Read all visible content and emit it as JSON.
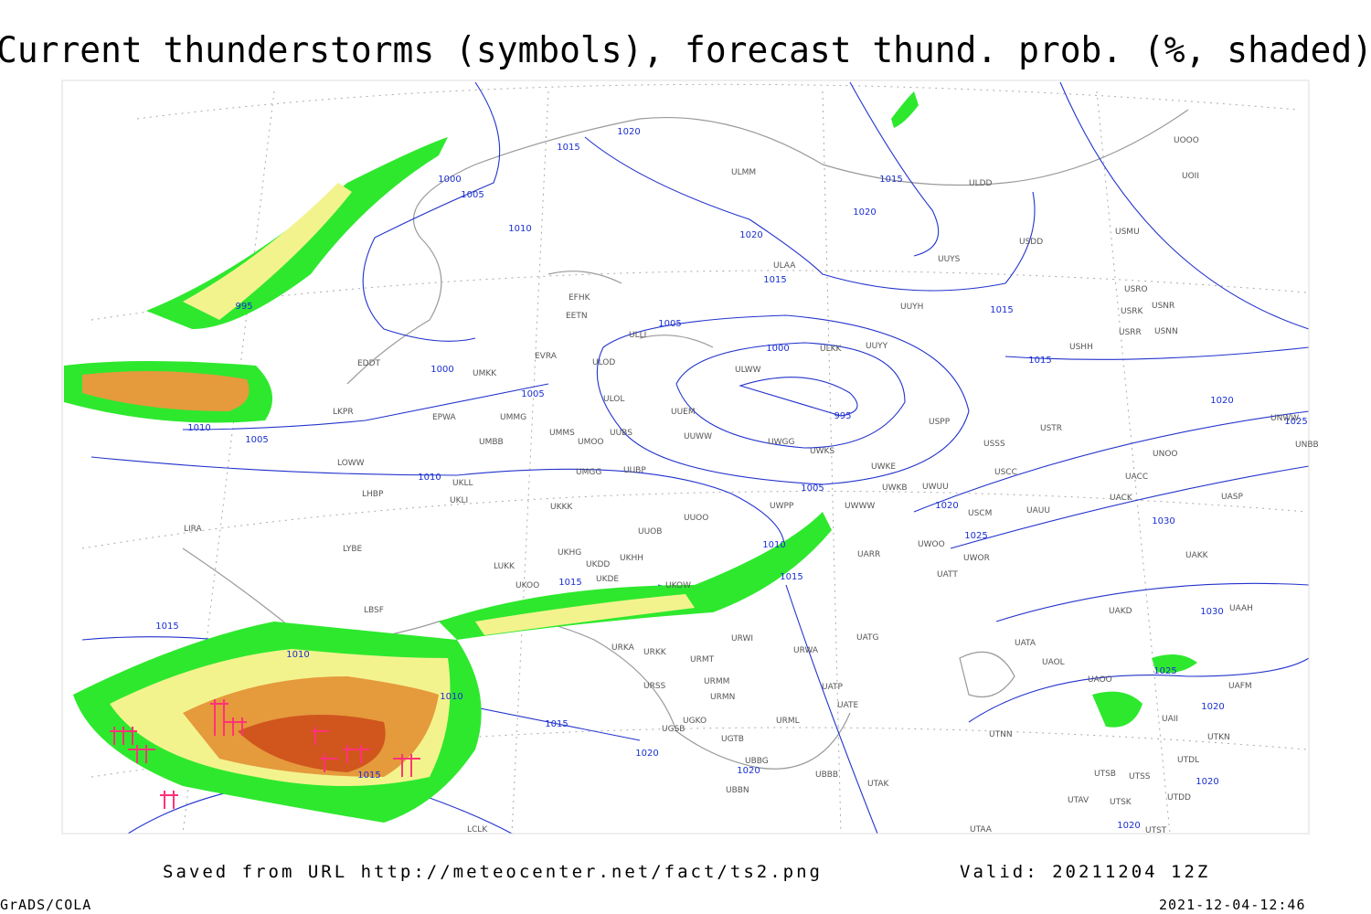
{
  "title": "Current thunderstorms (symbols), forecast thund. prob. (%, shaded)",
  "isobar_labels": [
    "1015",
    "1020",
    "1000",
    "1005",
    "1010",
    "1020",
    "1015",
    "1015",
    "1020",
    "995",
    "1000",
    "1005",
    "1010",
    "1005",
    "1010",
    "1005",
    "1000",
    "995",
    "1005",
    "1015",
    "1015",
    "1020",
    "1025",
    "1020",
    "1025",
    "1030",
    "1030",
    "1025",
    "1020",
    "1020",
    "1020",
    "1010",
    "1015",
    "1015",
    "1015",
    "1010",
    "1010",
    "1015",
    "1015",
    "1020",
    "1020"
  ],
  "station_labels": [
    "EDDT",
    "EFHK",
    "EETN",
    "EVRA",
    "ULLI",
    "ULOD",
    "UMKK",
    "ULOL",
    "UMMG",
    "EPWA",
    "LKPR",
    "UMMS",
    "UMOO",
    "UUBS",
    "UMBB",
    "UUEM",
    "UUWW",
    "UWGG",
    "UWKS",
    "ULWW",
    "ULKK",
    "UUYY",
    "USPP",
    "UWKE",
    "UWKB",
    "UWUU",
    "UWWW",
    "UWPP",
    "LOWW",
    "LHBP",
    "UKLL",
    "UKLI",
    "UMGG",
    "UUBP",
    "UKKK",
    "UUOO",
    "UUOB",
    "LIRA",
    "LYBE",
    "LUKK",
    "UKHH",
    "UKDD",
    "UKHG",
    "UKOO",
    "UKDE",
    "UKOW",
    "LBSF",
    "URKA",
    "URKK",
    "URMT",
    "URMM",
    "URMN",
    "URSS",
    "UGKO",
    "UGSB",
    "UGTB",
    "UBBG",
    "UBBB",
    "URWI",
    "URWA",
    "URML",
    "UATG",
    "UATP",
    "UATE",
    "UTAK",
    "UTAA",
    "UTNN",
    "UAOL",
    "UATA",
    "UAOO",
    "UAKD",
    "UATT",
    "UWOR",
    "UWOO",
    "UARR",
    "USCM",
    "USCC",
    "USSS",
    "USTR",
    "UAUU",
    "UACK",
    "UACC",
    "UAKK",
    "UASP",
    "UNOO",
    "UNBB",
    "UNWW",
    "USHH",
    "USRR",
    "USNN",
    "USRK",
    "USNR",
    "USRO",
    "USMU",
    "USDD",
    "UUYS",
    "UUYH",
    "ULDD",
    "ULMM",
    "ULAA",
    "UOOO",
    "UOII",
    "UAAH",
    "UAFM",
    "UAII",
    "UTSS",
    "UTSB",
    "UTAV",
    "UTSK",
    "UTDD",
    "UTDL",
    "UTST",
    "UTKN",
    "LCLK",
    "UBBN"
  ],
  "footer": {
    "source": "Saved from URL http://meteocenter.net/fact/ts2.png",
    "valid": "Valid: 20211204 12Z",
    "software": "GrADS/COLA",
    "timestamp": "2021-12-04-12:46"
  }
}
